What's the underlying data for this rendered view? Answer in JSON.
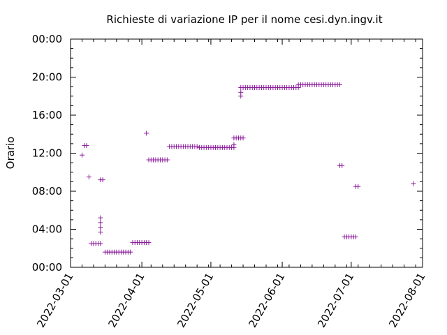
{
  "chart_data": {
    "type": "scatter",
    "title": "Richieste di variazione IP per il nome cesi.dyn.ingv.it",
    "xlabel": "",
    "ylabel": "Orario",
    "x_tick_labels": [
      "2022-03-01",
      "2022-04-01",
      "2022-05-01",
      "2022-06-01",
      "2022-07-01",
      "2022-08-01"
    ],
    "y_tick_labels": [
      "00:00",
      "04:00",
      "08:00",
      "12:00",
      "16:00",
      "20:00",
      "00:00"
    ],
    "xlim": [
      "2022-03-01",
      "2022-08-01"
    ],
    "ylim_hours": [
      0,
      24
    ],
    "grid": false,
    "marker": "+",
    "color": "#8b1a9b",
    "series": [
      {
        "points": [
          [
            "2022-03-06",
            11.8
          ],
          [
            "2022-03-07",
            12.8
          ],
          [
            "2022-03-08",
            12.8
          ],
          [
            "2022-03-09",
            9.5
          ],
          [
            "2022-03-10",
            2.5
          ],
          [
            "2022-03-11",
            2.5
          ],
          [
            "2022-03-12",
            2.5
          ],
          [
            "2022-03-13",
            2.5
          ],
          [
            "2022-03-14",
            2.5
          ],
          [
            "2022-03-14",
            5.2
          ],
          [
            "2022-03-14",
            4.7
          ],
          [
            "2022-03-14",
            4.2
          ],
          [
            "2022-03-14",
            3.7
          ],
          [
            "2022-03-14",
            9.2
          ],
          [
            "2022-03-15",
            9.2
          ],
          [
            "2022-03-16",
            1.6
          ],
          [
            "2022-03-17",
            1.6
          ],
          [
            "2022-03-18",
            1.6
          ],
          [
            "2022-03-19",
            1.6
          ],
          [
            "2022-03-20",
            1.6
          ],
          [
            "2022-03-21",
            1.6
          ],
          [
            "2022-03-22",
            1.6
          ],
          [
            "2022-03-23",
            1.6
          ],
          [
            "2022-03-24",
            1.6
          ],
          [
            "2022-03-25",
            1.6
          ],
          [
            "2022-03-26",
            1.6
          ],
          [
            "2022-03-27",
            1.6
          ],
          [
            "2022-03-28",
            2.6
          ],
          [
            "2022-03-29",
            2.6
          ],
          [
            "2022-03-30",
            2.6
          ],
          [
            "2022-03-31",
            2.6
          ],
          [
            "2022-04-01",
            2.6
          ],
          [
            "2022-04-02",
            2.6
          ],
          [
            "2022-04-03",
            2.6
          ],
          [
            "2022-04-04",
            2.6
          ],
          [
            "2022-04-03",
            14.1
          ],
          [
            "2022-04-04",
            11.3
          ],
          [
            "2022-04-05",
            11.3
          ],
          [
            "2022-04-06",
            11.3
          ],
          [
            "2022-04-07",
            11.3
          ],
          [
            "2022-04-08",
            11.3
          ],
          [
            "2022-04-09",
            11.3
          ],
          [
            "2022-04-10",
            11.3
          ],
          [
            "2022-04-11",
            11.3
          ],
          [
            "2022-04-12",
            11.3
          ],
          [
            "2022-04-13",
            12.7
          ],
          [
            "2022-04-14",
            12.7
          ],
          [
            "2022-04-15",
            12.7
          ],
          [
            "2022-04-16",
            12.7
          ],
          [
            "2022-04-17",
            12.7
          ],
          [
            "2022-04-18",
            12.7
          ],
          [
            "2022-04-19",
            12.7
          ],
          [
            "2022-04-20",
            12.7
          ],
          [
            "2022-04-21",
            12.7
          ],
          [
            "2022-04-22",
            12.7
          ],
          [
            "2022-04-23",
            12.7
          ],
          [
            "2022-04-24",
            12.7
          ],
          [
            "2022-04-25",
            12.7
          ],
          [
            "2022-04-26",
            12.6
          ],
          [
            "2022-04-27",
            12.6
          ],
          [
            "2022-04-28",
            12.6
          ],
          [
            "2022-04-29",
            12.6
          ],
          [
            "2022-04-30",
            12.6
          ],
          [
            "2022-05-01",
            12.6
          ],
          [
            "2022-05-02",
            12.6
          ],
          [
            "2022-05-03",
            12.6
          ],
          [
            "2022-05-04",
            12.6
          ],
          [
            "2022-05-05",
            12.6
          ],
          [
            "2022-05-06",
            12.6
          ],
          [
            "2022-05-07",
            12.6
          ],
          [
            "2022-05-08",
            12.6
          ],
          [
            "2022-05-09",
            12.6
          ],
          [
            "2022-05-10",
            12.6
          ],
          [
            "2022-05-11",
            12.6
          ],
          [
            "2022-05-11",
            12.9
          ],
          [
            "2022-05-11",
            13.6
          ],
          [
            "2022-05-12",
            13.6
          ],
          [
            "2022-05-13",
            13.6
          ],
          [
            "2022-05-14",
            13.6
          ],
          [
            "2022-05-15",
            13.6
          ],
          [
            "2022-05-14",
            18.0
          ],
          [
            "2022-05-14",
            18.4
          ],
          [
            "2022-05-14",
            18.9
          ],
          [
            "2022-05-15",
            18.9
          ],
          [
            "2022-05-16",
            18.9
          ],
          [
            "2022-05-17",
            18.9
          ],
          [
            "2022-05-18",
            18.9
          ],
          [
            "2022-05-19",
            18.9
          ],
          [
            "2022-05-20",
            18.9
          ],
          [
            "2022-05-21",
            18.9
          ],
          [
            "2022-05-22",
            18.9
          ],
          [
            "2022-05-23",
            18.9
          ],
          [
            "2022-05-24",
            18.9
          ],
          [
            "2022-05-25",
            18.9
          ],
          [
            "2022-05-26",
            18.9
          ],
          [
            "2022-05-27",
            18.9
          ],
          [
            "2022-05-28",
            18.9
          ],
          [
            "2022-05-29",
            18.9
          ],
          [
            "2022-05-30",
            18.9
          ],
          [
            "2022-05-31",
            18.9
          ],
          [
            "2022-06-01",
            18.9
          ],
          [
            "2022-06-02",
            18.9
          ],
          [
            "2022-06-03",
            18.9
          ],
          [
            "2022-06-04",
            18.9
          ],
          [
            "2022-06-05",
            18.9
          ],
          [
            "2022-06-06",
            18.9
          ],
          [
            "2022-06-07",
            18.9
          ],
          [
            "2022-06-08",
            18.9
          ],
          [
            "2022-06-08",
            19.2
          ],
          [
            "2022-06-09",
            19.2
          ],
          [
            "2022-06-10",
            19.2
          ],
          [
            "2022-06-11",
            19.2
          ],
          [
            "2022-06-12",
            19.2
          ],
          [
            "2022-06-13",
            19.2
          ],
          [
            "2022-06-14",
            19.2
          ],
          [
            "2022-06-15",
            19.2
          ],
          [
            "2022-06-16",
            19.2
          ],
          [
            "2022-06-17",
            19.2
          ],
          [
            "2022-06-18",
            19.2
          ],
          [
            "2022-06-19",
            19.2
          ],
          [
            "2022-06-20",
            19.2
          ],
          [
            "2022-06-21",
            19.2
          ],
          [
            "2022-06-22",
            19.2
          ],
          [
            "2022-06-23",
            19.2
          ],
          [
            "2022-06-24",
            19.2
          ],
          [
            "2022-06-25",
            19.2
          ],
          [
            "2022-06-26",
            19.2
          ],
          [
            "2022-06-26",
            10.7
          ],
          [
            "2022-06-27",
            10.7
          ],
          [
            "2022-06-28",
            3.2
          ],
          [
            "2022-06-29",
            3.2
          ],
          [
            "2022-06-30",
            3.2
          ],
          [
            "2022-07-01",
            3.2
          ],
          [
            "2022-07-02",
            3.2
          ],
          [
            "2022-07-03",
            3.2
          ],
          [
            "2022-07-03",
            8.5
          ],
          [
            "2022-07-04",
            8.5
          ],
          [
            "2022-07-28",
            8.8
          ]
        ]
      }
    ]
  }
}
